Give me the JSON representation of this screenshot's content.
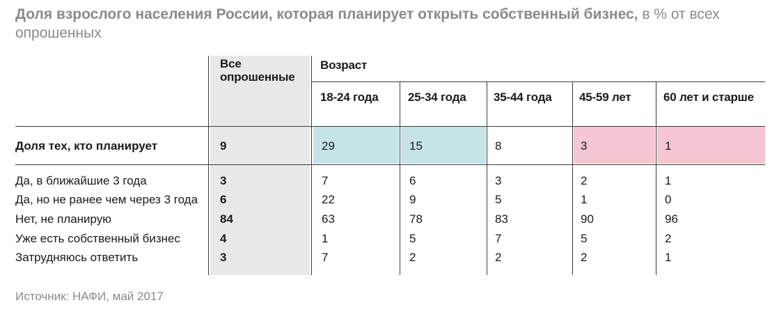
{
  "title": {
    "main": "Доля взрослого населения России, которая планирует открыть собственный бизнес,",
    "suffix": " в % от всех опрошенных"
  },
  "header": {
    "all_label": "Все опрошенные",
    "age_label": "Возраст"
  },
  "colors": {
    "all_column_bg": "#e8e8e8",
    "young_highlight": "#c6e3e8",
    "old_highlight": "#f4c6d2"
  },
  "chart_data": {
    "type": "table",
    "columns": [
      "Все опрошенные",
      "18-24 года",
      "25-34 года",
      "35-44 года",
      "45-59 лет",
      "60 лет и старше"
    ],
    "column_group": "Возраст",
    "rows": [
      {
        "label": "Доля тех, кто планирует",
        "values": [
          "9",
          "29",
          "15",
          "8",
          "3",
          "1"
        ]
      },
      {
        "label": "Да, в ближайшие 3 года",
        "values": [
          "3",
          "7",
          "6",
          "3",
          "2",
          "1"
        ]
      },
      {
        "label": "Да, но не ранее чем через 3 года",
        "values": [
          "6",
          "22",
          "9",
          "5",
          "1",
          "0"
        ]
      },
      {
        "label": "Нет, не планирую",
        "values": [
          "84",
          "63",
          "78",
          "83",
          "90",
          "96"
        ]
      },
      {
        "label": "Уже есть собственный бизнес",
        "values": [
          "4",
          "1",
          "5",
          "7",
          "5",
          "2"
        ]
      },
      {
        "label": "Затрудняюсь ответить",
        "values": [
          "3",
          "7",
          "2",
          "2",
          "2",
          "1"
        ]
      }
    ]
  },
  "source": "Источник: НАФИ, май 2017"
}
